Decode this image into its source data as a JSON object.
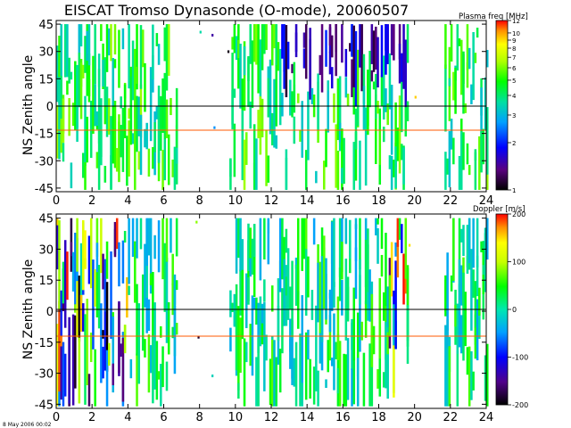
{
  "title": "EISCAT Tromso Dynasonde (O-mode),  20060507",
  "footer_timestamp": "8 May 2006 00:02",
  "chart_data": [
    {
      "type": "heatmap",
      "name": "plasma-frequency",
      "ylabel": "NS Zenith angle",
      "xlabel": "",
      "x_ticks": [
        "0",
        "2",
        "4",
        "6",
        "8",
        "10",
        "12",
        "14",
        "16",
        "18",
        "20",
        "22",
        "24"
      ],
      "y_ticks": [
        "45",
        "30",
        "15",
        "0",
        "-15",
        "-30",
        "-45"
      ],
      "xlim": [
        0,
        24
      ],
      "ylim": [
        -47,
        47
      ],
      "colorbar_label": "Plasma freq [MHz]",
      "colorbar_ticks": [
        "12",
        "10",
        "9",
        "8",
        "7",
        "6",
        "5",
        "4",
        "3",
        "2",
        "1"
      ],
      "colorbar_range": [
        1,
        12
      ],
      "reference_lines": [
        {
          "y": 0,
          "color": "#000000"
        },
        {
          "y": -12,
          "color": "#ff5a00"
        }
      ],
      "data_gaps_hours": [
        [
          6.7,
          9.6
        ],
        [
          19.6,
          21.6
        ]
      ]
    },
    {
      "type": "heatmap",
      "name": "doppler-velocity",
      "ylabel": "NS Zenith angle",
      "xlabel": "",
      "x_ticks": [
        "0",
        "2",
        "4",
        "6",
        "8",
        "10",
        "12",
        "14",
        "16",
        "18",
        "20",
        "22",
        "24"
      ],
      "y_ticks": [
        "45",
        "30",
        "15",
        "0",
        "-15",
        "-30",
        "-45"
      ],
      "xlim": [
        0,
        24
      ],
      "ylim": [
        -47,
        47
      ],
      "colorbar_label": "Doppler [m/s]",
      "colorbar_ticks": [
        "200",
        "100",
        "0",
        "-100",
        "-200"
      ],
      "colorbar_range": [
        -200,
        200
      ],
      "reference_lines": [
        {
          "y": 0,
          "color": "#000000"
        },
        {
          "y": -12,
          "color": "#ff5a00"
        }
      ],
      "data_gaps_hours": [
        [
          6.7,
          9.6
        ],
        [
          19.6,
          21.6
        ]
      ]
    }
  ]
}
